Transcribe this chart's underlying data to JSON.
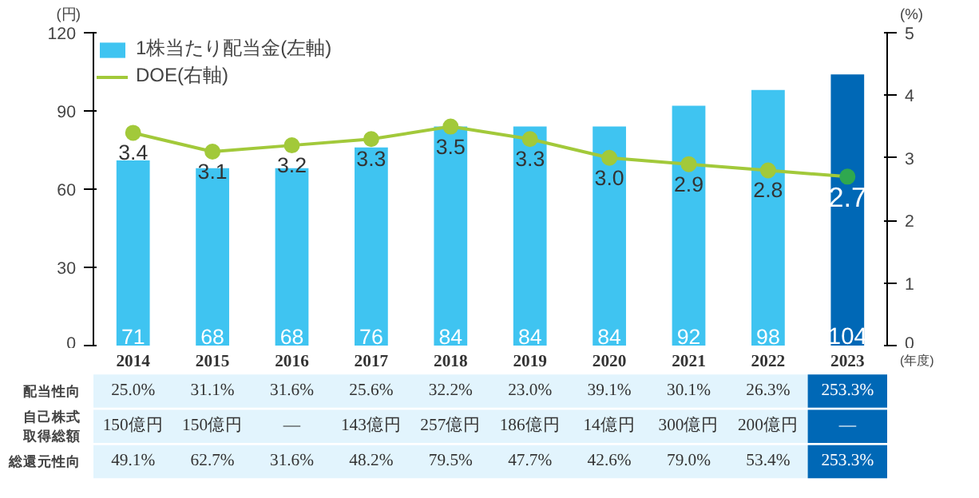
{
  "chart_data": {
    "type": "bar",
    "categories": [
      "2014",
      "2015",
      "2016",
      "2017",
      "2018",
      "2019",
      "2020",
      "2021",
      "2022",
      "2023"
    ],
    "xlabel": "(年度)",
    "ylabel": "(円)",
    "y2label": "(%)",
    "series": [
      {
        "name": "1株当たり配当金(左軸)",
        "color": "#3fc4f1",
        "colors": [
          "#3fc4f1",
          "#3fc4f1",
          "#3fc4f1",
          "#3fc4f1",
          "#3fc4f1",
          "#3fc4f1",
          "#3fc4f1",
          "#3fc4f1",
          "#3fc4f1",
          "#0068b6"
        ],
        "values": [
          71,
          68,
          68,
          76,
          84,
          84,
          84,
          92,
          98,
          104
        ]
      },
      {
        "name": "DOE(右軸)",
        "type": "line",
        "axis": "y2",
        "color": "#a2c93a",
        "colors": [
          "#a2c93a",
          "#a2c93a",
          "#a2c93a",
          "#a2c93a",
          "#a2c93a",
          "#a2c93a",
          "#a2c93a",
          "#a2c93a",
          "#a2c93a",
          "#2fa84f"
        ],
        "values": [
          3.4,
          3.1,
          3.2,
          3.3,
          3.5,
          3.3,
          3.0,
          2.9,
          2.8,
          2.7
        ],
        "value_labels": [
          "3.4",
          "3.1",
          "3.2",
          "3.3",
          "3.5",
          "3.3",
          "3.0",
          "2.9",
          "2.8",
          "2.7"
        ]
      }
    ],
    "ylim": [
      0,
      120
    ],
    "yticks": [
      0,
      30,
      60,
      90,
      120
    ],
    "y2lim": [
      0,
      5
    ],
    "y2ticks": [
      0,
      1,
      2,
      3,
      4,
      5
    ],
    "data_labels": true,
    "grid": false,
    "legend": "top left",
    "marker": "circle",
    "line_style": "solid",
    "annotations": [
      "配当性向",
      "25.0%",
      "31.1%",
      "31.6%",
      "25.6%",
      "32.2%",
      "23.0%",
      "39.1%",
      "30.1%",
      "26.3%",
      "253.3%",
      "自己株式取得総額",
      "150億円",
      "150億円",
      "—",
      "143億円",
      "257億円",
      "186億円",
      "14億円",
      "300億円",
      "200億円",
      "—",
      "総還元性向",
      "49.1%",
      "62.7%",
      "31.6%",
      "48.2%",
      "79.5%",
      "47.7%",
      "42.6%",
      "79.0%",
      "53.4%",
      "253.3%"
    ]
  }
}
